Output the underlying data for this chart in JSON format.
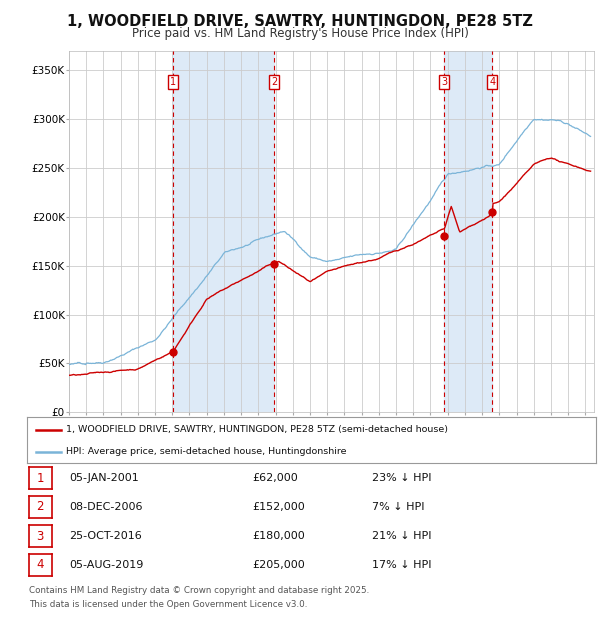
{
  "title": "1, WOODFIELD DRIVE, SAWTRY, HUNTINGDON, PE28 5TZ",
  "subtitle": "Price paid vs. HM Land Registry's House Price Index (HPI)",
  "title_fontsize": 10.5,
  "subtitle_fontsize": 8.5,
  "bg_color": "#ffffff",
  "plot_bg_color": "#ffffff",
  "grid_color": "#cccccc",
  "sale_dates_num": [
    2001.03,
    2006.93,
    2016.81,
    2019.59
  ],
  "sale_prices": [
    62000,
    152000,
    180000,
    205000
  ],
  "sale_labels": [
    "1",
    "2",
    "3",
    "4"
  ],
  "sale_date_strs": [
    "05-JAN-2001",
    "08-DEC-2006",
    "25-OCT-2016",
    "05-AUG-2019"
  ],
  "sale_pct": [
    "23%",
    "7%",
    "21%",
    "17%"
  ],
  "red_line_color": "#cc0000",
  "blue_line_color": "#7ab4d8",
  "marker_color": "#cc0000",
  "vline_color": "#cc0000",
  "vline_shade_color": "#ddeaf7",
  "legend_line1": "1, WOODFIELD DRIVE, SAWTRY, HUNTINGDON, PE28 5TZ (semi-detached house)",
  "legend_line2": "HPI: Average price, semi-detached house, Huntingdonshire",
  "footer1": "Contains HM Land Registry data © Crown copyright and database right 2025.",
  "footer2": "This data is licensed under the Open Government Licence v3.0.",
  "ylim": [
    0,
    370000
  ],
  "xlim_start": 1995.0,
  "xlim_end": 2025.5,
  "yticks": [
    0,
    50000,
    100000,
    150000,
    200000,
    250000,
    300000,
    350000
  ],
  "ytick_labels": [
    "£0",
    "£50K",
    "£100K",
    "£150K",
    "£200K",
    "£250K",
    "£300K",
    "£350K"
  ]
}
